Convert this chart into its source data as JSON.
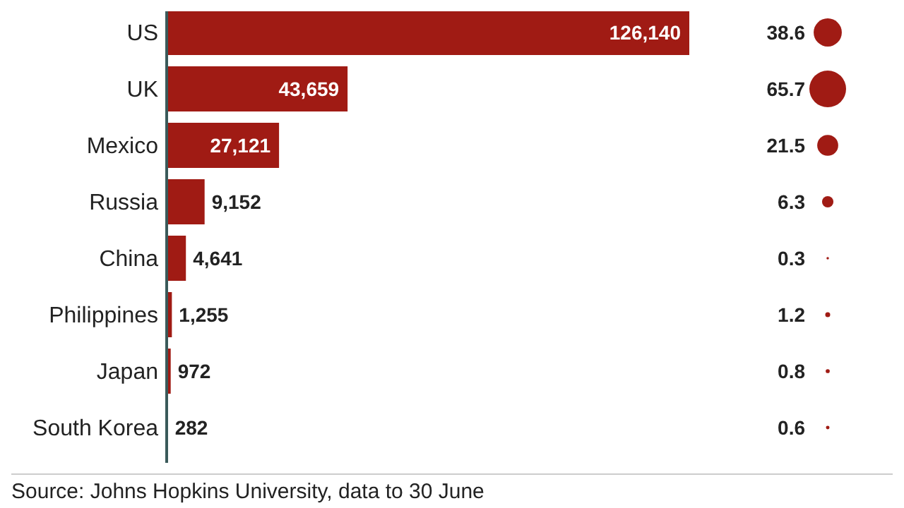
{
  "chart_data": [
    {
      "type": "bar",
      "orientation": "horizontal",
      "categories": [
        "US",
        "UK",
        "Mexico",
        "Russia",
        "China",
        "Philippines",
        "Japan",
        "South Korea"
      ],
      "values": [
        126140,
        43659,
        27121,
        9152,
        4641,
        1255,
        972,
        282
      ],
      "value_labels": [
        "126,140",
        "43,659",
        "27,121",
        "9,152",
        "4,641",
        "1,255",
        "972",
        "282"
      ],
      "color": "#a01b14",
      "annotations": [
        "Source: Johns Hopkins University, data to 30 June"
      ]
    },
    {
      "type": "other",
      "categories": [
        null,
        null,
        null,
        null,
        null,
        null,
        null,
        null
      ],
      "values": [
        38.6,
        65.7,
        21.5,
        6.3,
        0.3,
        1.2,
        0.8,
        0.6
      ],
      "color": "#a01b14",
      "data_labels": true
    }
  ]
}
